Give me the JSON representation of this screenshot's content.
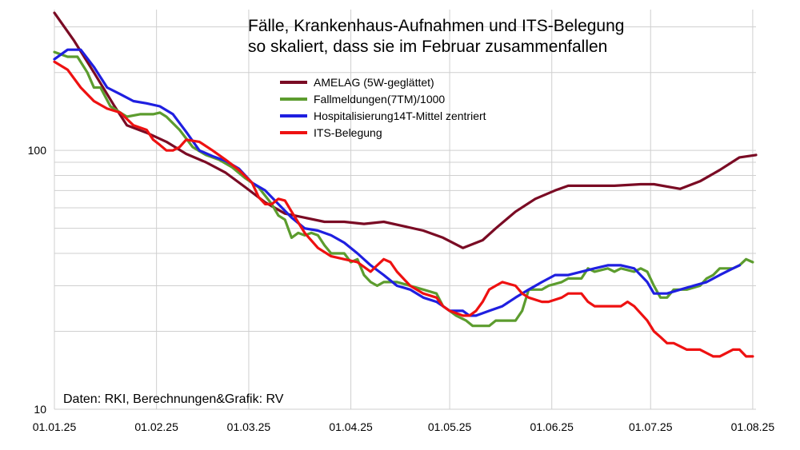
{
  "chart_data": {
    "type": "line",
    "title_lines": [
      "Fälle, Krankenhaus-Aufnahmen und ITS-Belegung",
      "so skaliert, dass sie im Februar zusammenfallen"
    ],
    "credit": "Daten: RKI, Berechnungen&Grafik: RV",
    "yscale": "log",
    "ylim": [
      10,
      350
    ],
    "yticks": [
      {
        "label": "10",
        "value": 10
      },
      {
        "label": "100",
        "value": 100
      }
    ],
    "xlim": [
      0,
      213
    ],
    "xticks": [
      {
        "label": "01.01.25",
        "day": 0
      },
      {
        "label": "01.02.25",
        "day": 31
      },
      {
        "label": "01.03.25",
        "day": 59
      },
      {
        "label": "01.04.25",
        "day": 90
      },
      {
        "label": "01.05.25",
        "day": 120
      },
      {
        "label": "01.06.25",
        "day": 151
      },
      {
        "label": "01.07.25",
        "day": 181
      },
      {
        "label": "01.08.25",
        "day": 212
      }
    ],
    "series": [
      {
        "name": "AMELAG (5W-geglättet)",
        "color": "#7a0b24",
        "points": [
          [
            0,
            340
          ],
          [
            6,
            265
          ],
          [
            12,
            200
          ],
          [
            18,
            150
          ],
          [
            22,
            125
          ],
          [
            28,
            117
          ],
          [
            34,
            108
          ],
          [
            40,
            97
          ],
          [
            46,
            90
          ],
          [
            52,
            82
          ],
          [
            58,
            72
          ],
          [
            64,
            63
          ],
          [
            70,
            57
          ],
          [
            76,
            55
          ],
          [
            82,
            53
          ],
          [
            88,
            53
          ],
          [
            94,
            52
          ],
          [
            100,
            53
          ],
          [
            106,
            51
          ],
          [
            112,
            49
          ],
          [
            118,
            46
          ],
          [
            124,
            42
          ],
          [
            130,
            45
          ],
          [
            134,
            50
          ],
          [
            140,
            58
          ],
          [
            146,
            65
          ],
          [
            152,
            70
          ],
          [
            156,
            73
          ],
          [
            162,
            73
          ],
          [
            170,
            73
          ],
          [
            178,
            74
          ],
          [
            182,
            74
          ],
          [
            190,
            71
          ],
          [
            196,
            76
          ],
          [
            202,
            84
          ],
          [
            208,
            94
          ],
          [
            213,
            96
          ]
        ]
      },
      {
        "name": "Fallmeldungen(7TM)/1000",
        "color": "#5c9c2e",
        "points": [
          [
            0,
            240
          ],
          [
            4,
            230
          ],
          [
            7,
            230
          ],
          [
            10,
            200
          ],
          [
            12,
            175
          ],
          [
            14,
            175
          ],
          [
            17,
            148
          ],
          [
            20,
            140
          ],
          [
            22,
            135
          ],
          [
            26,
            138
          ],
          [
            30,
            138
          ],
          [
            32,
            140
          ],
          [
            34,
            135
          ],
          [
            38,
            120
          ],
          [
            42,
            103
          ],
          [
            46,
            96
          ],
          [
            50,
            92
          ],
          [
            54,
            86
          ],
          [
            58,
            78
          ],
          [
            62,
            72
          ],
          [
            66,
            62
          ],
          [
            68,
            56
          ],
          [
            70,
            54
          ],
          [
            72,
            46
          ],
          [
            74,
            48
          ],
          [
            76,
            47
          ],
          [
            78,
            48
          ],
          [
            80,
            47
          ],
          [
            82,
            43
          ],
          [
            84,
            40
          ],
          [
            88,
            40
          ],
          [
            90,
            37
          ],
          [
            92,
            38
          ],
          [
            94,
            33
          ],
          [
            96,
            31
          ],
          [
            98,
            30
          ],
          [
            100,
            31
          ],
          [
            104,
            31
          ],
          [
            108,
            30
          ],
          [
            112,
            29
          ],
          [
            116,
            28
          ],
          [
            118,
            25
          ],
          [
            120,
            24
          ],
          [
            122,
            23
          ],
          [
            125,
            22
          ],
          [
            127,
            21
          ],
          [
            130,
            21
          ],
          [
            132,
            21
          ],
          [
            134,
            22
          ],
          [
            136,
            22
          ],
          [
            140,
            22
          ],
          [
            142,
            24
          ],
          [
            144,
            29
          ],
          [
            148,
            29
          ],
          [
            150,
            30
          ],
          [
            154,
            31
          ],
          [
            156,
            32
          ],
          [
            160,
            32
          ],
          [
            162,
            35
          ],
          [
            164,
            34
          ],
          [
            168,
            35
          ],
          [
            170,
            34
          ],
          [
            172,
            35
          ],
          [
            176,
            34
          ],
          [
            178,
            35
          ],
          [
            180,
            34
          ],
          [
            182,
            30
          ],
          [
            184,
            27
          ],
          [
            186,
            27
          ],
          [
            188,
            29
          ],
          [
            190,
            29
          ],
          [
            192,
            29
          ],
          [
            196,
            30
          ],
          [
            198,
            32
          ],
          [
            200,
            33
          ],
          [
            202,
            35
          ],
          [
            206,
            35
          ],
          [
            208,
            36
          ],
          [
            210,
            38
          ],
          [
            212,
            37
          ]
        ]
      },
      {
        "name": "Hospitalisierung14T-Mittel zentriert",
        "color": "#1f1fe0",
        "points": [
          [
            0,
            225
          ],
          [
            4,
            245
          ],
          [
            8,
            245
          ],
          [
            12,
            210
          ],
          [
            16,
            175
          ],
          [
            20,
            165
          ],
          [
            24,
            155
          ],
          [
            28,
            152
          ],
          [
            32,
            148
          ],
          [
            36,
            138
          ],
          [
            40,
            118
          ],
          [
            44,
            100
          ],
          [
            48,
            95
          ],
          [
            52,
            91
          ],
          [
            56,
            85
          ],
          [
            60,
            75
          ],
          [
            64,
            70
          ],
          [
            68,
            62
          ],
          [
            72,
            55
          ],
          [
            76,
            50
          ],
          [
            80,
            49
          ],
          [
            84,
            47
          ],
          [
            88,
            44
          ],
          [
            92,
            40
          ],
          [
            96,
            36
          ],
          [
            100,
            33
          ],
          [
            104,
            30
          ],
          [
            108,
            29
          ],
          [
            112,
            27
          ],
          [
            116,
            26
          ],
          [
            118,
            25
          ],
          [
            120,
            24
          ],
          [
            124,
            24
          ],
          [
            126,
            23
          ],
          [
            128,
            23
          ],
          [
            132,
            24
          ],
          [
            136,
            25
          ],
          [
            140,
            27
          ],
          [
            144,
            29
          ],
          [
            148,
            31
          ],
          [
            152,
            33
          ],
          [
            156,
            33
          ],
          [
            160,
            34
          ],
          [
            164,
            35
          ],
          [
            168,
            36
          ],
          [
            172,
            36
          ],
          [
            176,
            35
          ],
          [
            180,
            31
          ],
          [
            182,
            28
          ],
          [
            186,
            28
          ],
          [
            190,
            29
          ],
          [
            194,
            30
          ],
          [
            198,
            31
          ],
          [
            202,
            33
          ],
          [
            206,
            35
          ],
          [
            208,
            36
          ]
        ]
      },
      {
        "name": "ITS-Belegung",
        "color": "#ee1111",
        "points": [
          [
            0,
            220
          ],
          [
            4,
            205
          ],
          [
            8,
            175
          ],
          [
            12,
            155
          ],
          [
            16,
            145
          ],
          [
            20,
            140
          ],
          [
            24,
            125
          ],
          [
            28,
            120
          ],
          [
            30,
            110
          ],
          [
            32,
            105
          ],
          [
            34,
            100
          ],
          [
            36,
            100
          ],
          [
            38,
            103
          ],
          [
            40,
            110
          ],
          [
            44,
            108
          ],
          [
            48,
            100
          ],
          [
            52,
            92
          ],
          [
            56,
            84
          ],
          [
            60,
            75
          ],
          [
            62,
            66
          ],
          [
            64,
            62
          ],
          [
            66,
            62
          ],
          [
            68,
            65
          ],
          [
            70,
            64
          ],
          [
            72,
            58
          ],
          [
            76,
            48
          ],
          [
            80,
            42
          ],
          [
            84,
            39
          ],
          [
            88,
            38
          ],
          [
            92,
            37
          ],
          [
            96,
            34
          ],
          [
            98,
            36
          ],
          [
            100,
            38
          ],
          [
            102,
            37
          ],
          [
            104,
            34
          ],
          [
            108,
            30
          ],
          [
            112,
            28
          ],
          [
            116,
            27
          ],
          [
            118,
            25
          ],
          [
            120,
            24
          ],
          [
            124,
            23
          ],
          [
            126,
            23
          ],
          [
            128,
            24
          ],
          [
            130,
            26
          ],
          [
            132,
            29
          ],
          [
            134,
            30
          ],
          [
            136,
            31
          ],
          [
            140,
            30
          ],
          [
            142,
            28
          ],
          [
            144,
            27
          ],
          [
            148,
            26
          ],
          [
            150,
            26
          ],
          [
            154,
            27
          ],
          [
            156,
            28
          ],
          [
            160,
            28
          ],
          [
            162,
            26
          ],
          [
            164,
            25
          ],
          [
            168,
            25
          ],
          [
            172,
            25
          ],
          [
            174,
            26
          ],
          [
            176,
            25
          ],
          [
            180,
            22
          ],
          [
            182,
            20
          ],
          [
            184,
            19
          ],
          [
            186,
            18
          ],
          [
            188,
            18
          ],
          [
            192,
            17
          ],
          [
            194,
            17
          ],
          [
            196,
            17
          ],
          [
            200,
            16
          ],
          [
            202,
            16
          ],
          [
            206,
            17
          ],
          [
            208,
            17
          ],
          [
            210,
            16
          ],
          [
            212,
            16
          ]
        ]
      }
    ]
  }
}
